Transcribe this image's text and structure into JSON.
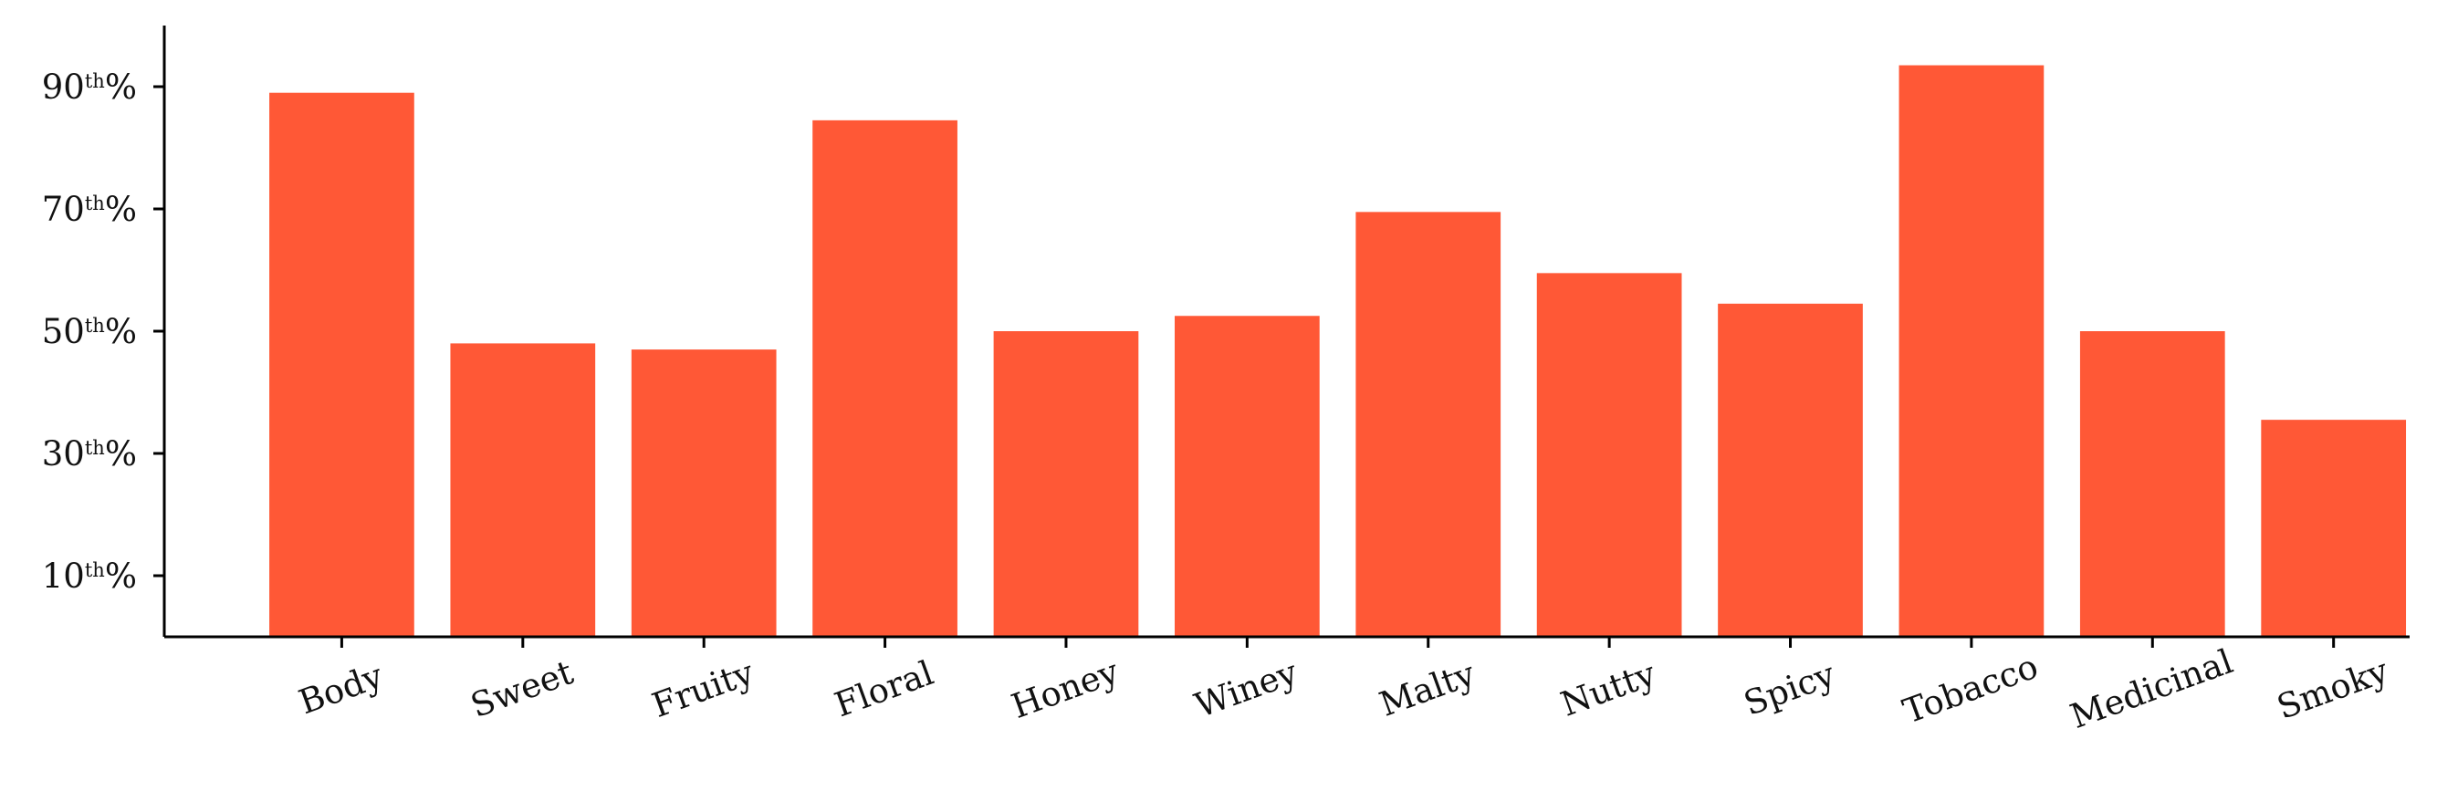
{
  "chart_data": {
    "type": "bar",
    "title": "",
    "xlabel": "",
    "ylabel": "",
    "categories": [
      "Body",
      "Sweet",
      "Fruity",
      "Floral",
      "Honey",
      "Winey",
      "Malty",
      "Nutty",
      "Spicy",
      "Tobacco",
      "Medicinal",
      "Smoky"
    ],
    "values": [
      89,
      48,
      47,
      84.5,
      50,
      52.5,
      69.5,
      59.5,
      54.5,
      93.5,
      50,
      35.5
    ],
    "ylim": [
      0,
      100
    ],
    "yticks": [
      {
        "value": 10,
        "num": "10",
        "sup": "th",
        "suffix": "%"
      },
      {
        "value": 30,
        "num": "30",
        "sup": "th",
        "suffix": "%"
      },
      {
        "value": 50,
        "num": "50",
        "sup": "th",
        "suffix": "%"
      },
      {
        "value": 70,
        "num": "70",
        "sup": "th",
        "suffix": "%"
      },
      {
        "value": 90,
        "num": "90",
        "sup": "th",
        "suffix": "%"
      }
    ],
    "bar_color": "#ff5836",
    "grid": false,
    "legend": "none",
    "xtick_rotation": 20
  }
}
